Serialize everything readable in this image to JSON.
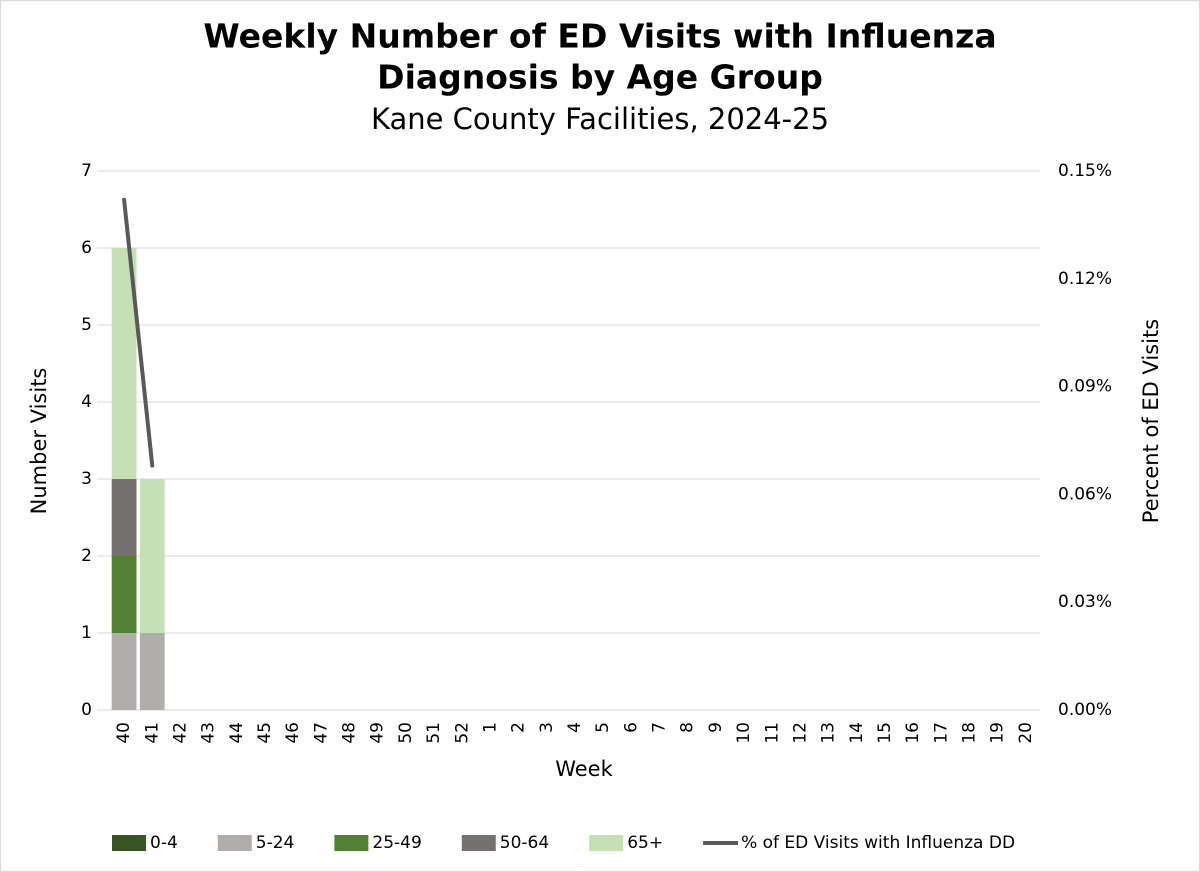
{
  "chart_data": {
    "type": "bar",
    "title": [
      "Weekly Number of ED Visits with Influenza",
      "Diagnosis by Age Group"
    ],
    "subtitle": "Kane County Facilities, 2024-25",
    "x_label": "Week",
    "y_label": "Number Visits",
    "y2_label": "Percent of ED Visits",
    "categories": [
      "40",
      "41",
      "42",
      "43",
      "44",
      "45",
      "46",
      "47",
      "48",
      "49",
      "50",
      "51",
      "52",
      "1",
      "2",
      "3",
      "4",
      "5",
      "6",
      "7",
      "8",
      "9",
      "10",
      "11",
      "12",
      "13",
      "14",
      "15",
      "16",
      "17",
      "18",
      "19",
      "20"
    ],
    "stacked": true,
    "grid": true,
    "legend": "bottom",
    "ylim": [
      0,
      7
    ],
    "yticks": [
      0,
      1,
      2,
      3,
      4,
      5,
      6,
      7
    ],
    "y2lim": [
      0,
      0.15
    ],
    "y2ticks": [
      {
        "value": 0,
        "label": "0.00%"
      },
      {
        "value": 0.03,
        "label": "0.03%"
      },
      {
        "value": 0.06,
        "label": "0.06%"
      },
      {
        "value": 0.09,
        "label": "0.09%"
      },
      {
        "value": 0.12,
        "label": "0.12%"
      },
      {
        "value": 0.15,
        "label": "0.15%"
      }
    ],
    "series": [
      {
        "name": "0-4",
        "color": "#375623",
        "type": "bar",
        "values": [
          0,
          0,
          null,
          null,
          null,
          null,
          null,
          null,
          null,
          null,
          null,
          null,
          null,
          null,
          null,
          null,
          null,
          null,
          null,
          null,
          null,
          null,
          null,
          null,
          null,
          null,
          null,
          null,
          null,
          null,
          null,
          null,
          null
        ]
      },
      {
        "name": "5-24",
        "color": "#b0acac",
        "type": "bar",
        "values": [
          1,
          1,
          null,
          null,
          null,
          null,
          null,
          null,
          null,
          null,
          null,
          null,
          null,
          null,
          null,
          null,
          null,
          null,
          null,
          null,
          null,
          null,
          null,
          null,
          null,
          null,
          null,
          null,
          null,
          null,
          null,
          null,
          null
        ]
      },
      {
        "name": "25-49",
        "color": "#548235",
        "type": "bar",
        "values": [
          1,
          0,
          null,
          null,
          null,
          null,
          null,
          null,
          null,
          null,
          null,
          null,
          null,
          null,
          null,
          null,
          null,
          null,
          null,
          null,
          null,
          null,
          null,
          null,
          null,
          null,
          null,
          null,
          null,
          null,
          null,
          null,
          null
        ]
      },
      {
        "name": "50-64",
        "color": "#767171",
        "type": "bar",
        "values": [
          1,
          0,
          null,
          null,
          null,
          null,
          null,
          null,
          null,
          null,
          null,
          null,
          null,
          null,
          null,
          null,
          null,
          null,
          null,
          null,
          null,
          null,
          null,
          null,
          null,
          null,
          null,
          null,
          null,
          null,
          null,
          null,
          null
        ]
      },
      {
        "name": "65+",
        "color": "#c5e0b4",
        "type": "bar",
        "values": [
          3,
          2,
          null,
          null,
          null,
          null,
          null,
          null,
          null,
          null,
          null,
          null,
          null,
          null,
          null,
          null,
          null,
          null,
          null,
          null,
          null,
          null,
          null,
          null,
          null,
          null,
          null,
          null,
          null,
          null,
          null,
          null,
          null
        ]
      },
      {
        "name": "% of ED Visits with Influenza DD",
        "color": "#595959",
        "type": "line",
        "axis": "y2",
        "values": [
          0.142,
          0.068,
          null,
          null,
          null,
          null,
          null,
          null,
          null,
          null,
          null,
          null,
          null,
          null,
          null,
          null,
          null,
          null,
          null,
          null,
          null,
          null,
          null,
          null,
          null,
          null,
          null,
          null,
          null,
          null,
          null,
          null,
          null
        ]
      }
    ]
  }
}
